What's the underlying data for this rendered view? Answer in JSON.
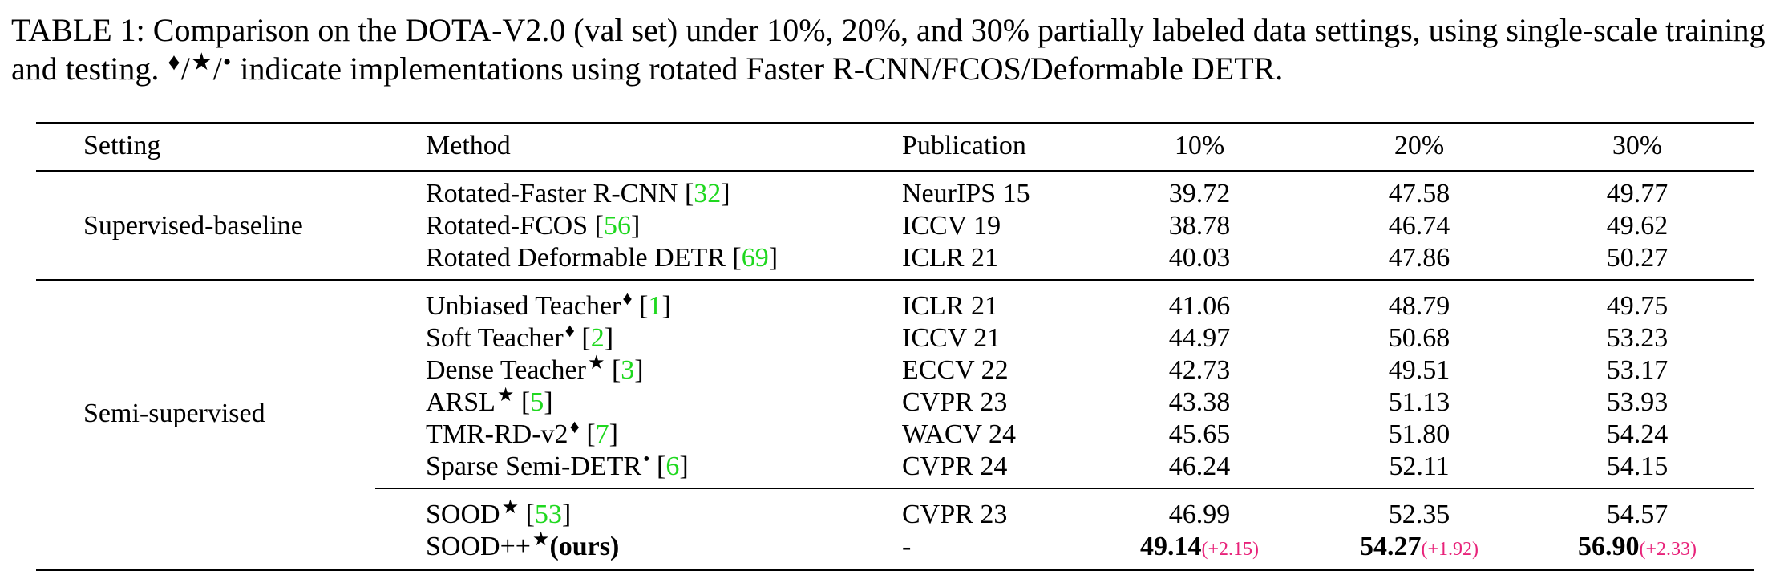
{
  "caption": {
    "lead": "TABLE 1: Comparison on the DOTA-V2.0 (val set) under 10%, 20%, and 30% partially labeled data settings, using single-scale training and testing.",
    "sym_diamond": "♦",
    "slash": "/",
    "sym_star": "★",
    "sym_dot": "•",
    "tail": "indicate implementations using rotated Faster R-CNN/FCOS/Deformable DETR."
  },
  "headers": {
    "setting": "Setting",
    "method": "Method",
    "publication": "Publication",
    "c10": "10%",
    "c20": "20%",
    "c30": "30%"
  },
  "groups": {
    "supervised": "Supervised-baseline",
    "semi": "Semi-supervised"
  },
  "rows": [
    {
      "name": "Rotated-Faster R-CNN",
      "mark": "",
      "cite": "32",
      "pub": "NeurIPS 15",
      "v10": "39.72",
      "v20": "47.58",
      "v30": "49.77"
    },
    {
      "name": "Rotated-FCOS",
      "mark": "",
      "cite": "56",
      "pub": "ICCV 19",
      "v10": "38.78",
      "v20": "46.74",
      "v30": "49.62"
    },
    {
      "name": "Rotated Deformable DETR",
      "mark": "",
      "cite": "69",
      "pub": "ICLR 21",
      "v10": "40.03",
      "v20": "47.86",
      "v30": "50.27"
    },
    {
      "name": "Unbiased Teacher",
      "mark": "♦",
      "cite": "1",
      "pub": "ICLR 21",
      "v10": "41.06",
      "v20": "48.79",
      "v30": "49.75"
    },
    {
      "name": "Soft Teacher",
      "mark": "♦",
      "cite": "2",
      "pub": "ICCV 21",
      "v10": "44.97",
      "v20": "50.68",
      "v30": "53.23"
    },
    {
      "name": "Dense Teacher",
      "mark": "★",
      "cite": "3",
      "pub": "ECCV 22",
      "v10": "42.73",
      "v20": "49.51",
      "v30": "53.17"
    },
    {
      "name": "ARSL",
      "mark": "★",
      "cite": "5",
      "pub": "CVPR 23",
      "v10": "43.38",
      "v20": "51.13",
      "v30": "53.93"
    },
    {
      "name": "TMR-RD-v2",
      "mark": "♦",
      "cite": "7",
      "pub": "WACV 24",
      "v10": "45.65",
      "v20": "51.80",
      "v30": "54.24"
    },
    {
      "name": "Sparse Semi-DETR",
      "mark": "•",
      "cite": "6",
      "pub": "CVPR 24",
      "v10": "46.24",
      "v20": "52.11",
      "v30": "54.15"
    },
    {
      "name": "SOOD",
      "mark": "★",
      "cite": "53",
      "pub": "CVPR 23",
      "v10": "46.99",
      "v20": "52.35",
      "v30": "54.57"
    }
  ],
  "ours": {
    "name": "SOOD++",
    "mark": "★",
    "label": "(ours)",
    "pub": "-",
    "v10": "49.14",
    "g10": "(+2.15)",
    "v20": "54.27",
    "g20": "(+1.92)",
    "v30": "56.90",
    "g30": "(+2.33)"
  },
  "colors": {
    "citation": "#1fd81f",
    "gain": "#e8237a"
  }
}
